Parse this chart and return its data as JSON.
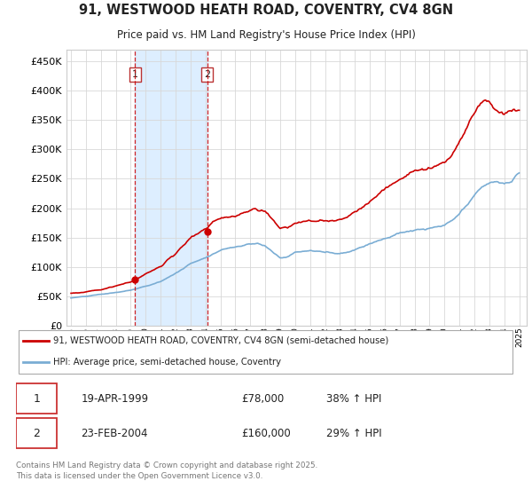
{
  "title": "91, WESTWOOD HEATH ROAD, COVENTRY, CV4 8GN",
  "subtitle": "Price paid vs. HM Land Registry's House Price Index (HPI)",
  "legend_line1": "91, WESTWOOD HEATH ROAD, COVENTRY, CV4 8GN (semi-detached house)",
  "legend_line2": "HPI: Average price, semi-detached house, Coventry",
  "transaction1_date": "19-APR-1999",
  "transaction1_price": "£78,000",
  "transaction1_hpi": "38% ↑ HPI",
  "transaction2_date": "23-FEB-2004",
  "transaction2_price": "£160,000",
  "transaction2_hpi": "29% ↑ HPI",
  "footer": "Contains HM Land Registry data © Crown copyright and database right 2025.\nThis data is licensed under the Open Government Licence v3.0.",
  "red_color": "#cc0000",
  "blue_color": "#7aadd4",
  "background_color": "#ffffff",
  "grid_color": "#d8d8d8",
  "ylim": [
    0,
    470000
  ],
  "yticks": [
    0,
    50000,
    100000,
    150000,
    200000,
    250000,
    300000,
    350000,
    400000,
    450000
  ],
  "transaction1_year": 1999.29,
  "transaction2_year": 2004.12,
  "transaction1_price_val": 78000,
  "transaction2_price_val": 160000,
  "shade_color": "#ddeeff"
}
